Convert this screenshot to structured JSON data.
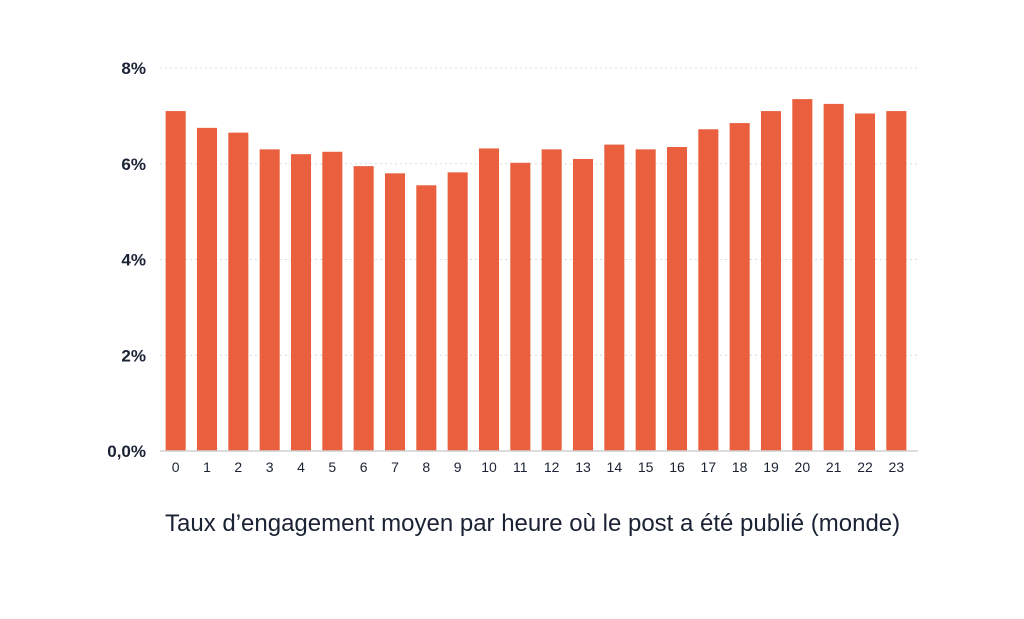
{
  "chart_data": {
    "type": "bar",
    "title": "Taux d’engagement moyen par heure où le post a été publié (monde)",
    "categories": [
      "0",
      "1",
      "2",
      "3",
      "4",
      "5",
      "6",
      "7",
      "8",
      "9",
      "10",
      "11",
      "12",
      "13",
      "14",
      "15",
      "16",
      "17",
      "18",
      "19",
      "20",
      "21",
      "22",
      "23"
    ],
    "series": [
      {
        "values": [
          7.1,
          6.75,
          6.65,
          6.3,
          6.2,
          6.25,
          5.95,
          5.8,
          5.55,
          5.82,
          6.32,
          6.02,
          6.3,
          6.1,
          6.4,
          6.3,
          6.35,
          6.72,
          6.85,
          7.1,
          7.35,
          7.25,
          7.05,
          7.1
        ]
      }
    ],
    "y_ticks": [
      {
        "value": 0,
        "label": "0,0%"
      },
      {
        "value": 2,
        "label": "2%"
      },
      {
        "value": 4,
        "label": "4%"
      },
      {
        "value": 6,
        "label": "6%"
      },
      {
        "value": 8,
        "label": "8%"
      }
    ],
    "ylim": [
      0,
      8
    ],
    "xlabel": "",
    "ylabel": "",
    "grid": true,
    "bar_color": "#ea5f3d"
  }
}
